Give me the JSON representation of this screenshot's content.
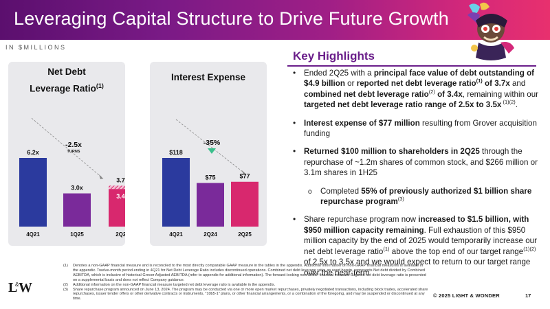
{
  "header": {
    "title": "Leveraging Capital Structure to Drive Future Growth"
  },
  "units_label": "IN $MILLIONS",
  "charts": [
    {
      "title_line1": "Net Debt",
      "title_line2": "Leverage Ratio",
      "title_sup": "(1)",
      "change_label": "-2.5x",
      "change_sublabel": "TURNS",
      "bar_color": "#2b3a9e",
      "second_color": "#7a2a9a",
      "third_color": "#d8286e"
    },
    {
      "title_line1": "Interest Expense",
      "change_label": "-35%",
      "arrow_color": "#3bbf8c"
    }
  ],
  "chart_data": [
    {
      "type": "bar",
      "title": "Net Debt Leverage Ratio(1)",
      "categories": [
        "4Q21",
        "1Q25",
        "2Q25"
      ],
      "values": [
        6.2,
        3.0,
        3.4
      ],
      "value_labels": [
        "6.2x",
        "3.0x",
        "3.4x"
      ],
      "stacked_extra": {
        "category": "2Q25",
        "value": 3.7,
        "label": "3.7x"
      },
      "annotation": "-2.5x TURNS"
    },
    {
      "type": "bar",
      "title": "Interest Expense",
      "categories": [
        "4Q21",
        "2Q24",
        "2Q25"
      ],
      "values": [
        118,
        75,
        77
      ],
      "value_labels": [
        "$118",
        "$75",
        "$77"
      ],
      "annotation": "-35%"
    }
  ],
  "highlights": {
    "title": "Key Highlights",
    "items": [
      {
        "segments": [
          {
            "t": "Ended 2Q25 with a "
          },
          {
            "t": "principal face value of debt outstanding of $4.9 billion",
            "b": true
          },
          {
            "t": " or "
          },
          {
            "t": "reported net debt leverage ratio",
            "b": true
          },
          {
            "t": "(1)",
            "sup": true,
            "b": true
          },
          {
            "t": " of 3.7x",
            "b": true
          },
          {
            "t": " and "
          },
          {
            "t": "combined net debt leverage ratio",
            "b": true
          },
          {
            "t": "(2)",
            "sup": true
          },
          {
            "t": "  of 3.4x",
            "b": true
          },
          {
            "t": ", remaining within our "
          },
          {
            "t": "targeted net debt leverage ratio range of 2.5x to 3.5x",
            "b": true
          },
          {
            "t": " (1)(2)",
            "sup": true
          },
          {
            "t": "."
          }
        ]
      },
      {
        "segments": [
          {
            "t": "Interest expense of $77 million",
            "b": true
          },
          {
            "t": " resulting from Grover acquisition funding"
          }
        ]
      },
      {
        "segments": [
          {
            "t": "Returned $100 million to shareholders in 2Q25",
            "b": true
          },
          {
            "t": " through the repurchase of ~1.2m shares of common stock, and $266 million or 3.1m shares in 1H25"
          }
        ]
      },
      {
        "sub": true,
        "segments": [
          {
            "t": "Completed "
          },
          {
            "t": "55% of previously authorized $1 billion share repurchase program",
            "b": true
          },
          {
            "t": "(3)",
            "sup": true
          }
        ]
      },
      {
        "segments": [
          {
            "t": "Share repurchase program now "
          },
          {
            "t": "increased to $1.5 billion, with $950 million capacity remaining",
            "b": true
          },
          {
            "t": ". Full exhaustion of this $950 million capacity by the end of 2025 would temporarily increase our net debt leverage ratio"
          },
          {
            "t": "(1)",
            "sup": true
          },
          {
            "t": " above the top end of our target range"
          },
          {
            "t": "(1)(2)",
            "sup": true
          },
          {
            "t": " of 2.5x to 3.5x and we would expect to return to our target range over the near-term"
          }
        ]
      }
    ]
  },
  "footnotes": [
    {
      "num": "(1)",
      "text": "Denotes a non-GAAP financial measure and is reconciled to the most directly comparable GAAP measure in the tables in the appendix. Additional information on non-GAAP financial measures is available in the appendix. Twelve-month period ending in 4Q21 for Net Debt Leverage Ratio includes discontinued operations. Combined net debt leverage ratio, as used herein, represents Net debt divided by Combined AEBITDA, which is inclusive of historical Grover Adjusted AEBITDA (refer to appendix for additional information). The forward-looking non-GAAP financial measure targeted net debt leverage ratio is presented on a supplemental basis and does not reflect Company guidance."
    },
    {
      "num": "(2)",
      "text": "Additional information on the non-GAAP financial measure targeted net debt leverage ratio is available in the appendix."
    },
    {
      "num": "(3)",
      "text": "Share repurchase program announced on June 13, 2024. The program may be conducted via one or more open market repurchases, privately negotiated transactions, including block trades, accelerated share repurchases, issuer tender offers or other derivative contracts or instruments, \"10b5-1\" plans, or other financial arrangements, or a combination of the foregoing, and may be suspended or discontinued at any time."
    }
  ],
  "footer": {
    "logo_text": "L&W",
    "copyright": "© 2025 LIGHT & WONDER",
    "page_number": "17"
  }
}
